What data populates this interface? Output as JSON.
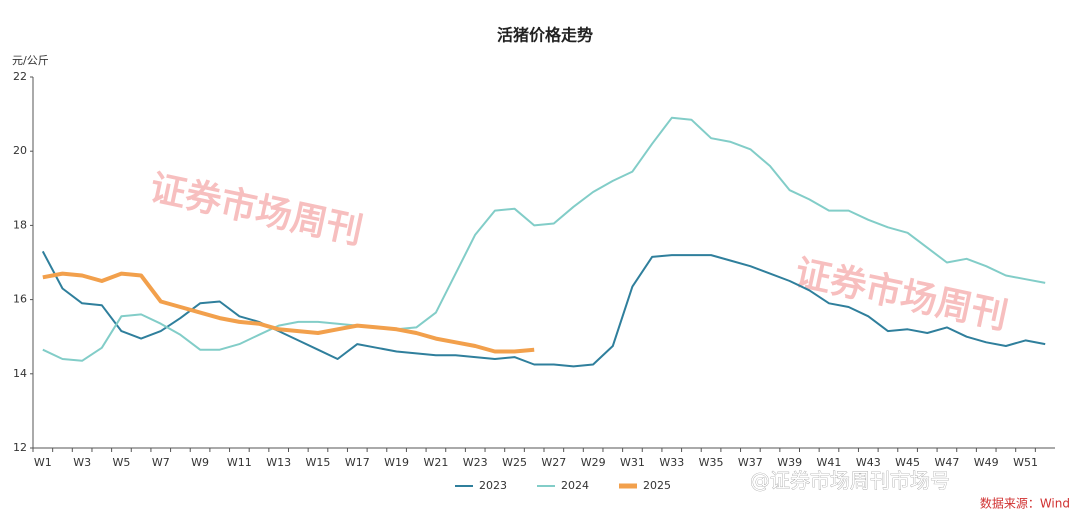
{
  "chart_data": {
    "type": "line",
    "title": "活猪价格走势",
    "y_label": "元/公斤",
    "categories": [
      "W1",
      null,
      "W3",
      null,
      "W5",
      null,
      "W7",
      null,
      "W9",
      null,
      "W11",
      null,
      "W13",
      null,
      "W15",
      null,
      "W17",
      null,
      "W19",
      null,
      "W21",
      null,
      "W23",
      null,
      "W25",
      null,
      "W27",
      null,
      "W29",
      null,
      "W31",
      null,
      "W33",
      null,
      "W35",
      null,
      "W37",
      null,
      "W39",
      null,
      "W41",
      null,
      "W43",
      null,
      "W45",
      null,
      "W47",
      null,
      "W49",
      null,
      "W51",
      null
    ],
    "series": [
      {
        "name": "2023",
        "color": "#2f7f9c",
        "values": [
          17.3,
          16.3,
          15.9,
          15.85,
          15.15,
          14.95,
          15.15,
          15.5,
          15.9,
          15.95,
          15.55,
          15.4,
          15.15,
          14.9,
          14.65,
          14.4,
          14.8,
          14.7,
          14.6,
          14.55,
          14.5,
          14.5,
          14.45,
          14.4,
          14.45,
          14.25,
          14.25,
          14.2,
          14.25,
          14.75,
          16.35,
          17.15,
          17.2,
          17.2,
          17.2,
          17.05,
          16.9,
          16.7,
          16.5,
          16.25,
          15.9,
          15.8,
          15.55,
          15.15,
          15.2,
          15.1,
          15.25,
          15.0,
          14.85,
          14.75,
          14.9,
          14.8
        ]
      },
      {
        "name": "2024",
        "color": "#82cdc8",
        "values": [
          14.65,
          14.4,
          14.35,
          14.7,
          15.55,
          15.6,
          15.35,
          15.05,
          14.65,
          14.65,
          14.8,
          15.05,
          15.3,
          15.4,
          15.4,
          15.35,
          15.3,
          15.25,
          15.2,
          15.25,
          15.65,
          16.7,
          17.75,
          18.4,
          18.45,
          18.0,
          18.05,
          18.5,
          18.9,
          19.2,
          19.45,
          20.2,
          20.9,
          20.85,
          20.35,
          20.25,
          20.05,
          19.6,
          18.95,
          18.7,
          18.4,
          18.4,
          18.15,
          17.95,
          17.8,
          17.4,
          17.0,
          17.1,
          16.9,
          16.65,
          16.55,
          16.45
        ]
      },
      {
        "name": "2025",
        "color": "#f2a04c",
        "values": [
          16.6,
          16.7,
          16.65,
          16.5,
          16.7,
          16.65,
          15.95,
          15.8,
          15.65,
          15.5,
          15.4,
          15.35,
          15.2,
          15.15,
          15.1,
          15.2,
          15.3,
          15.25,
          15.2,
          15.1,
          14.95,
          14.85,
          14.75,
          14.6,
          14.6,
          14.65,
          null,
          null,
          null,
          null,
          null,
          null,
          null,
          null,
          null,
          null,
          null,
          null,
          null,
          null,
          null,
          null,
          null,
          null,
          null,
          null,
          null,
          null,
          null,
          null,
          null,
          null
        ]
      }
    ],
    "ylim": [
      12,
      22
    ],
    "yticks": [
      12,
      14,
      16,
      18,
      20,
      22
    ],
    "watermark": "证券市场周刊",
    "credit": "@证券市场周刊市场号",
    "source": "数据来源：Wind"
  }
}
